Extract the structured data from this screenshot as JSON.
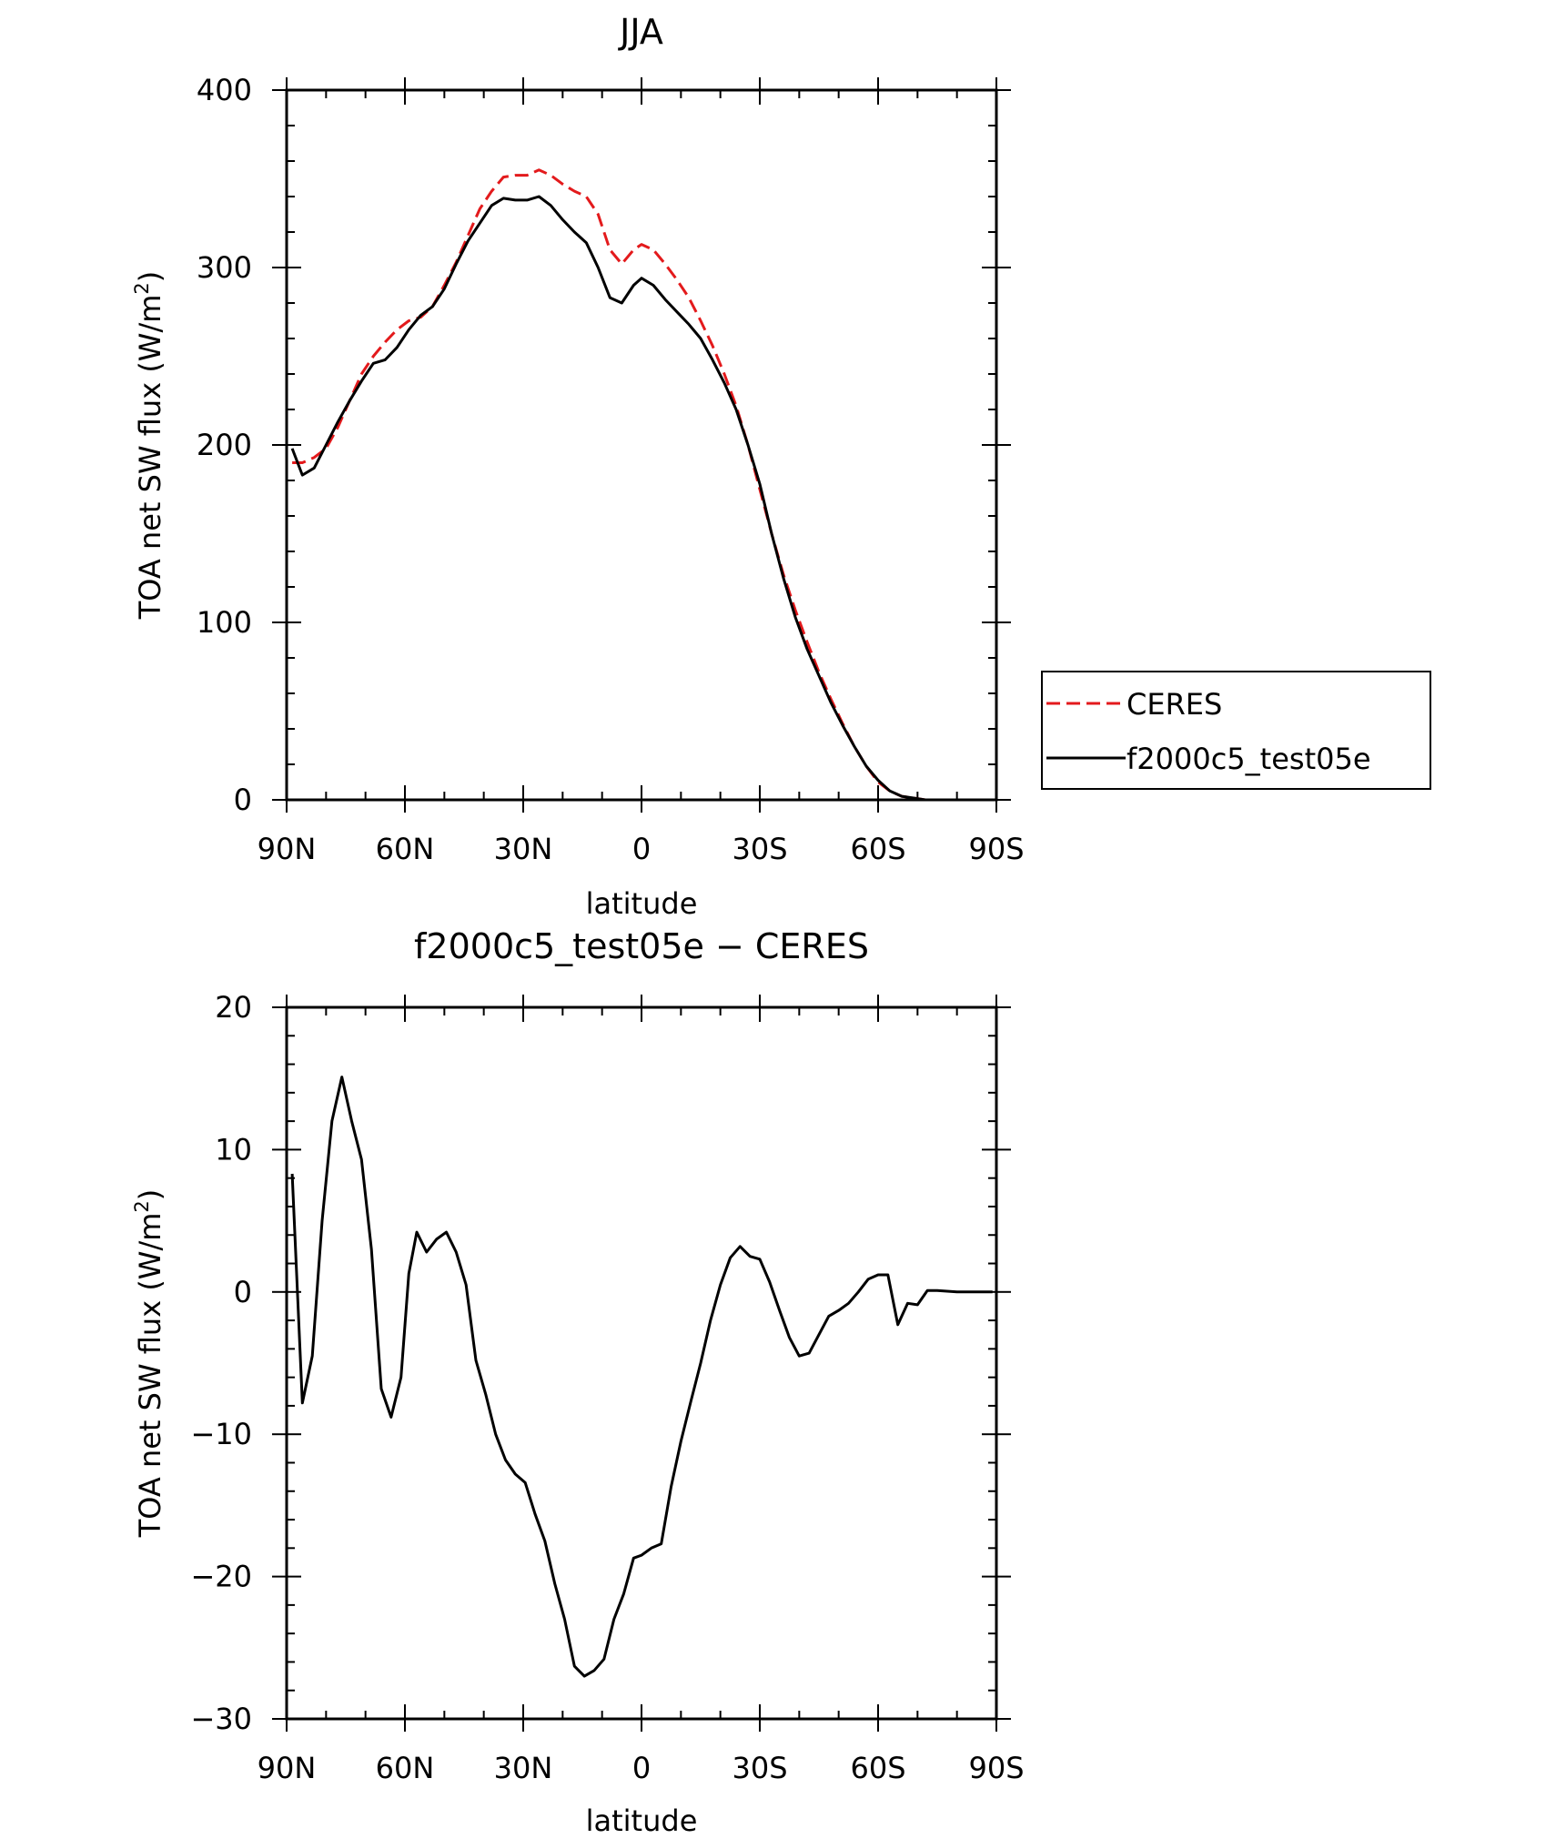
{
  "chart_data": [
    {
      "type": "line",
      "title": "JJA",
      "xlabel": "latitude",
      "ylabel_main": "TOA net SW flux (W/m",
      "ylabel_sup": "2",
      "ylabel_close": ")",
      "xlim": [
        90,
        -90
      ],
      "ylim": [
        0,
        400
      ],
      "xticks": [
        {
          "value": 90,
          "label": "90N"
        },
        {
          "value": 60,
          "label": "60N"
        },
        {
          "value": 30,
          "label": "30N"
        },
        {
          "value": 0,
          "label": "0"
        },
        {
          "value": -30,
          "label": "30S"
        },
        {
          "value": -60,
          "label": "60S"
        },
        {
          "value": -90,
          "label": "90S"
        }
      ],
      "yticks": [
        0,
        100,
        200,
        300,
        400
      ],
      "legend": "right",
      "series": [
        {
          "name": "CERES",
          "color": "#e31a1c",
          "dash": true,
          "points": [
            [
              88.6,
              190
            ],
            [
              86,
              190
            ],
            [
              83,
              193
            ],
            [
              80,
              198
            ],
            [
              77,
              210
            ],
            [
              74,
              225
            ],
            [
              71,
              240
            ],
            [
              68,
              250
            ],
            [
              65,
              258
            ],
            [
              62,
              265
            ],
            [
              59,
              270
            ],
            [
              56,
              272
            ],
            [
              53,
              278
            ],
            [
              50,
              290
            ],
            [
              47,
              303
            ],
            [
              44,
              318
            ],
            [
              41,
              333
            ],
            [
              38,
              343
            ],
            [
              35,
              351
            ],
            [
              32,
              352
            ],
            [
              29,
              352
            ],
            [
              26,
              355
            ],
            [
              23,
              352
            ],
            [
              20,
              347
            ],
            [
              17,
              343
            ],
            [
              14,
              340
            ],
            [
              11,
              330
            ],
            [
              8,
              310
            ],
            [
              5,
              302
            ],
            [
              2,
              310
            ],
            [
              0,
              313
            ],
            [
              -3,
              310
            ],
            [
              -6,
              302
            ],
            [
              -9,
              293
            ],
            [
              -12,
              283
            ],
            [
              -15,
              270
            ],
            [
              -18,
              256
            ],
            [
              -21,
              240
            ],
            [
              -24,
              222
            ],
            [
              -27,
              200
            ],
            [
              -30,
              175
            ],
            [
              -33,
              150
            ],
            [
              -36,
              127
            ],
            [
              -39,
              107
            ],
            [
              -42,
              89
            ],
            [
              -45,
              72
            ],
            [
              -48,
              57
            ],
            [
              -51,
              43
            ],
            [
              -54,
              30
            ],
            [
              -57,
              19
            ],
            [
              -60,
              10
            ],
            [
              -63,
              5
            ],
            [
              -66,
              2
            ],
            [
              -69,
              1
            ],
            [
              -72,
              0
            ],
            [
              -75,
              0
            ],
            [
              -78,
              0
            ],
            [
              -81,
              0
            ],
            [
              -84,
              0
            ],
            [
              -87,
              0
            ],
            [
              -89,
              0
            ]
          ]
        },
        {
          "name": "f2000c5_test05e",
          "color": "#000000",
          "dash": false,
          "points": [
            [
              88.6,
              198
            ],
            [
              86,
              183
            ],
            [
              83,
              187
            ],
            [
              80,
              200
            ],
            [
              77,
              213
            ],
            [
              74,
              225
            ],
            [
              71,
              236
            ],
            [
              68,
              246
            ],
            [
              65,
              248
            ],
            [
              62,
              255
            ],
            [
              59,
              265
            ],
            [
              56,
              273
            ],
            [
              53,
              278
            ],
            [
              50,
              288
            ],
            [
              47,
              302
            ],
            [
              44,
              315
            ],
            [
              41,
              325
            ],
            [
              38,
              335
            ],
            [
              35,
              339
            ],
            [
              32,
              338
            ],
            [
              29,
              338
            ],
            [
              26,
              340
            ],
            [
              23,
              335
            ],
            [
              20,
              327
            ],
            [
              17,
              320
            ],
            [
              14,
              314
            ],
            [
              11,
              300
            ],
            [
              8,
              283
            ],
            [
              5,
              280
            ],
            [
              2,
              290
            ],
            [
              0,
              294
            ],
            [
              -3,
              290
            ],
            [
              -6,
              282
            ],
            [
              -9,
              275
            ],
            [
              -12,
              268
            ],
            [
              -15,
              260
            ],
            [
              -18,
              248
            ],
            [
              -21,
              235
            ],
            [
              -24,
              220
            ],
            [
              -27,
              200
            ],
            [
              -30,
              178
            ],
            [
              -33,
              150
            ],
            [
              -36,
              125
            ],
            [
              -39,
              103
            ],
            [
              -42,
              85
            ],
            [
              -45,
              70
            ],
            [
              -48,
              55
            ],
            [
              -51,
              42
            ],
            [
              -54,
              30
            ],
            [
              -57,
              19
            ],
            [
              -60,
              11
            ],
            [
              -63,
              5
            ],
            [
              -66,
              2
            ],
            [
              -69,
              1
            ],
            [
              -72,
              0
            ],
            [
              -75,
              0
            ],
            [
              -78,
              0
            ],
            [
              -81,
              0
            ],
            [
              -84,
              0
            ],
            [
              -87,
              0
            ],
            [
              -89,
              0
            ]
          ]
        }
      ]
    },
    {
      "type": "line",
      "title": "f2000c5_test05e − CERES",
      "xlabel": "latitude",
      "ylabel_main": "TOA net SW flux (W/m",
      "ylabel_sup": "2",
      "ylabel_close": ")",
      "xlim": [
        90,
        -90
      ],
      "ylim": [
        -30,
        20
      ],
      "xticks": [
        {
          "value": 90,
          "label": "90N"
        },
        {
          "value": 60,
          "label": "60N"
        },
        {
          "value": 30,
          "label": "30N"
        },
        {
          "value": 0,
          "label": "0"
        },
        {
          "value": -30,
          "label": "30S"
        },
        {
          "value": -60,
          "label": "60S"
        },
        {
          "value": -90,
          "label": "90S"
        }
      ],
      "yticks": [
        -30,
        -20,
        -10,
        0,
        10,
        20
      ],
      "series": [
        {
          "name": "",
          "color": "#000000",
          "dash": false,
          "points": [
            [
              88.6,
              8.3
            ],
            [
              86,
              -7.8
            ],
            [
              83.5,
              -4.5
            ],
            [
              81,
              5
            ],
            [
              78.5,
              12
            ],
            [
              76,
              15.1
            ],
            [
              73.5,
              12
            ],
            [
              71,
              9.3
            ],
            [
              68.5,
              3
            ],
            [
              66,
              -6.8
            ],
            [
              63.5,
              -8.8
            ],
            [
              61,
              -6
            ],
            [
              59,
              1.3
            ],
            [
              57,
              4.2
            ],
            [
              54.5,
              2.8
            ],
            [
              52,
              3.7
            ],
            [
              49.5,
              4.2
            ],
            [
              47,
              2.8
            ],
            [
              44.5,
              0.5
            ],
            [
              42,
              -4.8
            ],
            [
              39.5,
              -7.2
            ],
            [
              37,
              -10
            ],
            [
              34.5,
              -11.8
            ],
            [
              32,
              -12.8
            ],
            [
              29.5,
              -13.4
            ],
            [
              27,
              -15.6
            ],
            [
              24.5,
              -17.5
            ],
            [
              22,
              -20.5
            ],
            [
              19.5,
              -23
            ],
            [
              17,
              -26.3
            ],
            [
              14.5,
              -27
            ],
            [
              12,
              -26.6
            ],
            [
              9.5,
              -25.8
            ],
            [
              7,
              -23
            ],
            [
              4.5,
              -21.2
            ],
            [
              2,
              -18.7
            ],
            [
              0,
              -18.5
            ],
            [
              -2.5,
              -18
            ],
            [
              -5,
              -17.7
            ],
            [
              -7.5,
              -13.7
            ],
            [
              -10,
              -10.5
            ],
            [
              -12.5,
              -7.7
            ],
            [
              -15,
              -5
            ],
            [
              -17.5,
              -2
            ],
            [
              -20,
              0.5
            ],
            [
              -22.5,
              2.4
            ],
            [
              -25,
              3.2
            ],
            [
              -27.5,
              2.5
            ],
            [
              -30,
              2.3
            ],
            [
              -32.5,
              0.7
            ],
            [
              -35,
              -1.3
            ],
            [
              -37.5,
              -3.2
            ],
            [
              -40,
              -4.5
            ],
            [
              -42.5,
              -4.3
            ],
            [
              -45,
              -3
            ],
            [
              -47.5,
              -1.7
            ],
            [
              -50,
              -1.3
            ],
            [
              -52.5,
              -0.8
            ],
            [
              -55,
              0
            ],
            [
              -57.5,
              0.9
            ],
            [
              -60,
              1.2
            ],
            [
              -62.5,
              1.2
            ],
            [
              -65,
              -2.3
            ],
            [
              -67.5,
              -0.8
            ],
            [
              -70,
              -0.9
            ],
            [
              -72.5,
              0.1
            ],
            [
              -75,
              0.1
            ],
            [
              -80,
              0
            ],
            [
              -85,
              0
            ],
            [
              -89,
              0
            ]
          ]
        }
      ]
    }
  ]
}
